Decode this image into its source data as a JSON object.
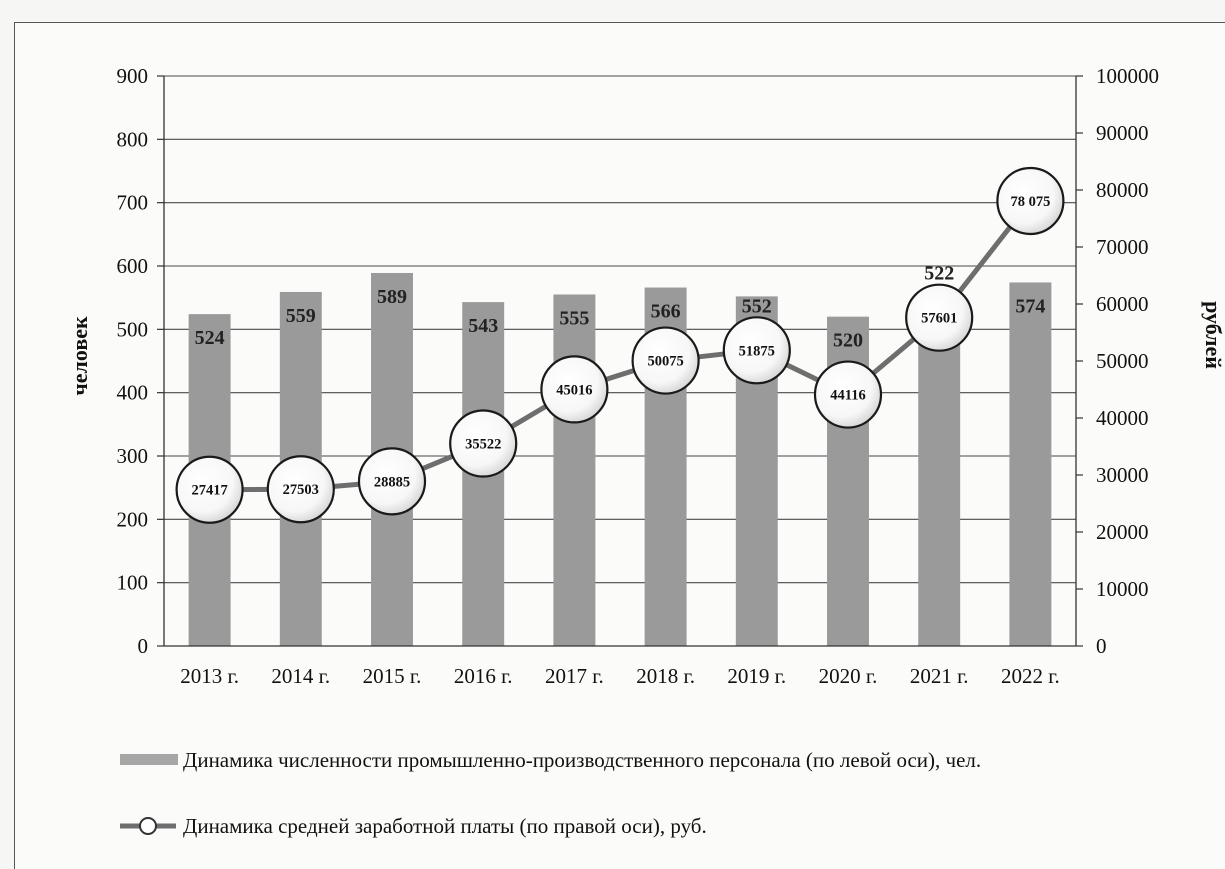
{
  "chart_data": {
    "type": "bar+line",
    "categories": [
      "2013 г.",
      "2014 г.",
      "2015 г.",
      "2016 г.",
      "2017 г.",
      "2018 г.",
      "2019 г.",
      "2020 г.",
      "2021 г.",
      "2022 г."
    ],
    "series": [
      {
        "name": "Динамика численности промышленно-производственного персонала (по левой оси), чел.",
        "type": "bar",
        "axis": "left",
        "values": [
          524,
          559,
          589,
          543,
          555,
          566,
          552,
          520,
          522,
          574
        ],
        "labels": [
          "524",
          "559",
          "589",
          "543",
          "555",
          "566",
          "552",
          "520",
          "522",
          "574"
        ],
        "color": "#9a9a9a"
      },
      {
        "name": "Динамика средней заработной платы (по правой оси), руб.",
        "type": "line",
        "axis": "right",
        "values": [
          27417,
          27503,
          28885,
          35522,
          45016,
          50075,
          51875,
          44116,
          57601,
          78075
        ],
        "labels": [
          "27417",
          "27503",
          "28885",
          "35522",
          "45016",
          "50075",
          "51875",
          "44116",
          "57601",
          "78 075"
        ],
        "color": "#6e6e6e"
      }
    ],
    "ylabel_left": "человек",
    "ylabel_right": "рублей",
    "ylim_left": [
      0,
      900
    ],
    "ylim_right": [
      0,
      100000
    ],
    "yticks_left": [
      "0",
      "100",
      "200",
      "300",
      "400",
      "500",
      "600",
      "700",
      "800",
      "900"
    ],
    "yticks_right": [
      "0",
      "10000",
      "20000",
      "30000",
      "40000",
      "50000",
      "60000",
      "70000",
      "80000",
      "90000",
      "100000"
    ],
    "grid": true,
    "legend_position": "bottom"
  }
}
